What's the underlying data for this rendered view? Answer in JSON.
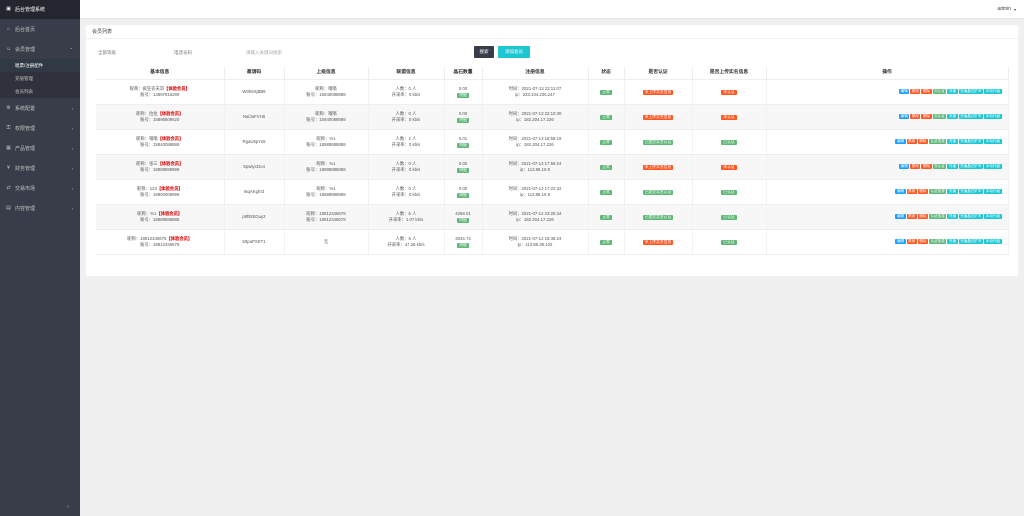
{
  "sidebar": {
    "brand": "后台管理系统",
    "items": [
      {
        "label": "后台首页",
        "icon": "home-icon"
      },
      {
        "label": "会员管理",
        "icon": "user-icon",
        "sub": [
          "唱票/注册配件",
          "充值管理",
          "会员列表"
        ]
      },
      {
        "label": "系统配置",
        "icon": "settings-icon"
      },
      {
        "label": "权限管理",
        "icon": "lock-icon"
      },
      {
        "label": "产品管理",
        "icon": "box-icon"
      },
      {
        "label": "财务管理",
        "icon": "money-icon"
      },
      {
        "label": "交易市场",
        "icon": "market-icon"
      },
      {
        "label": "内容管理",
        "icon": "doc-icon"
      }
    ]
  },
  "topbar": {
    "user": "admin"
  },
  "panel": {
    "title": "会员列表",
    "filter_select": "全部等级",
    "phone_label": "电话号码",
    "keyword_placeholder": "请输入关键词搜索",
    "search_btn": "搜索",
    "add_btn": "添加会员"
  },
  "columns": [
    "基本信息",
    "邀请码",
    "上级信息",
    "联盟信息",
    "晶石数量",
    "注册信息",
    "状态",
    "是否认证",
    "是否上传实名信息",
    "操作"
  ],
  "rows": [
    {
      "nick": "昵称：疯狂农夫哥",
      "vip": "【体验会员】",
      "acct": "账号：13897916289",
      "code": "W0h6XjBB9",
      "up1": "昵称：嗡嗡",
      "up2": "账号：15840088888",
      "u1": "人数：0 人",
      "u2": "开采率：0 kb/s",
      "crystal": "0.00",
      "reg1": "时间：2021-07-13 22:11:07",
      "reg2": "ip：223.104.236.247",
      "status": "正常",
      "cert": "未上传实名信息",
      "upl": "未认证",
      "certType": "r",
      "uplType": "r",
      "ops": [
        [
          "编辑",
          "c"
        ],
        [
          "禁用",
          "rd"
        ],
        [
          "删除",
          "rd"
        ],
        [
          "去认证",
          "gr"
        ],
        [
          "充值",
          "tq"
        ],
        [
          "充值晶石矿车",
          "tq"
        ],
        [
          "手动升级",
          "tq"
        ]
      ]
    },
    {
      "nick": "昵称：拉拉",
      "vip": "【体验会员】",
      "acct": "账号：15896609620",
      "code": "NafJuFVH6",
      "up1": "昵称：嗡嗡",
      "up2": "账号：15840088888",
      "u1": "人数：0 人",
      "u2": "开采率：0 kb/s",
      "crystal": "0.00",
      "reg1": "时间：2021-07-13 22:10:30",
      "reg2": "ip：182.204.17.226",
      "status": "正常",
      "cert": "未上传实名信息",
      "upl": "未认证",
      "certType": "r",
      "uplType": "r",
      "ops": [
        [
          "编辑",
          "c"
        ],
        [
          "禁用",
          "rd"
        ],
        [
          "删除",
          "rd"
        ],
        [
          "去认证",
          "gr"
        ],
        [
          "充值",
          "tq"
        ],
        [
          "充值晶石矿车",
          "tq"
        ],
        [
          "手动升级",
          "tq"
        ]
      ]
    },
    {
      "nick": "昵称：嗡嗡",
      "vip": "【体验会员】",
      "acct": "账号：15840088888",
      "code": "RgaU5pYo5",
      "up1": "昵称：%1",
      "up2": "账号：18888888888",
      "u1": "人数：2 人",
      "u2": "开采率：0 kb/s",
      "crystal": "0.01",
      "reg1": "时间：2021-07-13 18:58:19",
      "reg2": "ip：182.204.17.226",
      "status": "正常",
      "cert": "已提交实名认证",
      "upl": "已认证",
      "certType": "g",
      "uplType": "g",
      "ops": [
        [
          "编辑",
          "c"
        ],
        [
          "禁用",
          "rd"
        ],
        [
          "删除",
          "rd"
        ],
        [
          "认证信息",
          "gr"
        ],
        [
          "充值",
          "tq"
        ],
        [
          "充值晶石矿车",
          "tq"
        ],
        [
          "手动升级",
          "tq"
        ]
      ]
    },
    {
      "nick": "昵称：张三",
      "vip": "【体验会员】",
      "acct": "账号：18888899999",
      "code": "SpwtycDo4",
      "up1": "昵称：%1",
      "up2": "账号：18888888888",
      "u1": "人数：0 人",
      "u2": "开采率：0 kb/s",
      "crystal": "0.00",
      "reg1": "时间：2021-07-13 17:56:24",
      "reg2": "ip：113.88.10.9",
      "status": "正常",
      "cert": "未上传实名信息",
      "upl": "未认证",
      "certType": "r",
      "uplType": "r",
      "ops": [
        [
          "编辑",
          "c"
        ],
        [
          "禁用",
          "rd"
        ],
        [
          "删除",
          "rd"
        ],
        [
          "去认证",
          "gr"
        ],
        [
          "充值",
          "tq"
        ],
        [
          "充值晶石矿车",
          "tq"
        ],
        [
          "手动升级",
          "tq"
        ]
      ]
    },
    {
      "nick": "昵称：123",
      "vip": "【体验会员】",
      "acct": "账号：18800009999",
      "code": "r6qAKghr3",
      "up1": "昵称：%1",
      "up2": "账号：18888888888",
      "u1": "人数：0 人",
      "u2": "开采率：0 kb/s",
      "crystal": "0.00",
      "reg1": "时间：2021-07-13 17:22:32",
      "reg2": "ip：113.88.10.9",
      "status": "正常",
      "cert": "已提交实名认证",
      "upl": "已认证",
      "certType": "g",
      "uplType": "g",
      "ops": [
        [
          "编辑",
          "c"
        ],
        [
          "禁用",
          "rd"
        ],
        [
          "删除",
          "rd"
        ],
        [
          "认证信息",
          "gr"
        ],
        [
          "充值",
          "tq"
        ],
        [
          "充值晶石矿车",
          "tq"
        ],
        [
          "手动升级",
          "tq"
        ]
      ]
    },
    {
      "nick": "昵称：%1",
      "vip": "【体验会员】",
      "acct": "账号：18888888888",
      "code": "p9fEtEGuy2",
      "up1": "昵称：18812345678",
      "up2": "账号：18812345678",
      "u1": "人数：5 人",
      "u2": "开采率：1.07 kb/s",
      "crystal": "4268.01",
      "reg1": "时间：2021-07-12 23:25:34",
      "reg2": "ip：182.204.17.226",
      "status": "正常",
      "cert": "已提交实名认证",
      "upl": "已认证",
      "certType": "g",
      "uplType": "g",
      "ops": [
        [
          "编辑",
          "c"
        ],
        [
          "禁用",
          "rd"
        ],
        [
          "删除",
          "rd"
        ],
        [
          "认证信息",
          "gr"
        ],
        [
          "充值",
          "tq"
        ],
        [
          "充值晶石矿车",
          "tq"
        ],
        [
          "手动升级",
          "tq"
        ]
      ]
    },
    {
      "nick": "昵称：18812345678",
      "vip": "【体验会员】",
      "acct": "账号：18812345678",
      "code": "50paPXET1",
      "up1": "无",
      "up2": "",
      "u1": "人数：6 人",
      "u2": "开采率：47.28 kb/s",
      "crystal": "3034.74",
      "reg1": "时间：2021-07-12 18:38:24",
      "reg2": "ip：113.88.39.102",
      "status": "正常",
      "cert": "未上传实名信息",
      "upl": "已认证",
      "certType": "r",
      "uplType": "g",
      "ops": [
        [
          "编辑",
          "c"
        ],
        [
          "禁用",
          "rd"
        ],
        [
          "删除",
          "rd"
        ],
        [
          "认证信息",
          "gr"
        ],
        [
          "充值",
          "tq"
        ],
        [
          "充值晶石矿车",
          "tq"
        ],
        [
          "手动升级",
          "tq"
        ]
      ]
    }
  ],
  "crystal_tag": "明细",
  "colors": {
    "sidebar": "#393d49",
    "teal": "#1ec6d4",
    "green": "#5fb878",
    "red": "#ff5722",
    "blue": "#1e9fff"
  }
}
